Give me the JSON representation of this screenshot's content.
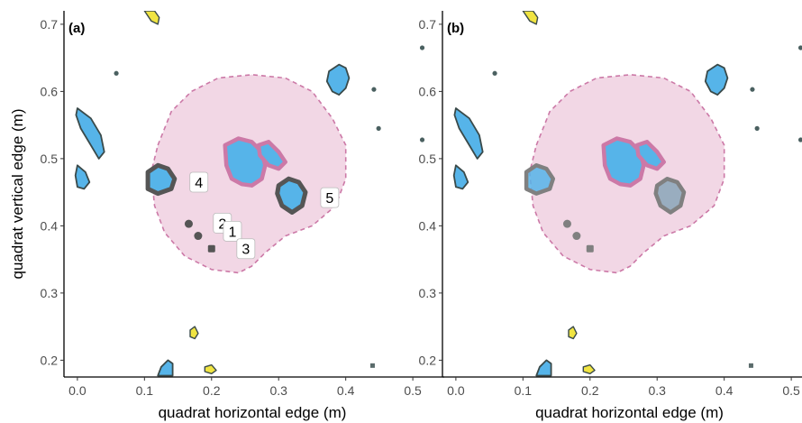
{
  "chart_data": {
    "type": "scatter",
    "xlabel": "quadrat horizontal edge (m)",
    "ylabel": "quadrat vertical edge (m)",
    "x_ticks": [
      "0.0",
      "0.1",
      "0.2",
      "0.3",
      "0.4",
      "0.5"
    ],
    "y_ticks": [
      "0.2",
      "0.3",
      "0.4",
      "0.5",
      "0.6",
      "0.7"
    ],
    "xlim": [
      -0.02,
      0.52
    ],
    "ylim": [
      0.175,
      0.72
    ],
    "grid": false,
    "colors": {
      "plant": "#56B4E9",
      "yellow_plant": "#F0E442",
      "canopy_fill": "#F2D7E5",
      "canopy_edge": "#CC79A7",
      "highlight_dark": "#555555",
      "highlight_grey": "#808080",
      "small_point": "#4a6060"
    },
    "panels": [
      {
        "tag": "(a)",
        "labels": [
          {
            "text": "4",
            "x": 0.165,
            "y": 0.465
          },
          {
            "text": "2",
            "x": 0.2,
            "y": 0.404
          },
          {
            "text": "1",
            "x": 0.215,
            "y": 0.392
          },
          {
            "text": "3",
            "x": 0.235,
            "y": 0.366
          },
          {
            "text": "5",
            "x": 0.36,
            "y": 0.442
          }
        ]
      },
      {
        "tag": "(b)",
        "labels": []
      }
    ],
    "small_points": [
      {
        "x": 0.058,
        "y": 0.627
      },
      {
        "x": 0.442,
        "y": 0.603
      },
      {
        "x": 0.449,
        "y": 0.545
      },
      {
        "x": 0.514,
        "y": 0.665
      },
      {
        "x": 0.514,
        "y": 0.528
      }
    ],
    "tiny_square": {
      "x": 0.44,
      "y": 0.192
    },
    "small_cluster": [
      {
        "x": 0.166,
        "y": 0.403
      },
      {
        "x": 0.18,
        "y": 0.385
      },
      {
        "x": 0.2,
        "y": 0.366
      }
    ],
    "canopy": [
      [
        0.12,
        0.52
      ],
      [
        0.14,
        0.57
      ],
      [
        0.17,
        0.6
      ],
      [
        0.21,
        0.62
      ],
      [
        0.26,
        0.625
      ],
      [
        0.31,
        0.62
      ],
      [
        0.35,
        0.6
      ],
      [
        0.38,
        0.56
      ],
      [
        0.4,
        0.52
      ],
      [
        0.4,
        0.47
      ],
      [
        0.385,
        0.43
      ],
      [
        0.35,
        0.4
      ],
      [
        0.31,
        0.385
      ],
      [
        0.28,
        0.36
      ],
      [
        0.26,
        0.34
      ],
      [
        0.24,
        0.33
      ],
      [
        0.2,
        0.335
      ],
      [
        0.16,
        0.355
      ],
      [
        0.13,
        0.39
      ],
      [
        0.115,
        0.43
      ],
      [
        0.11,
        0.48
      ]
    ],
    "blue_plants": [
      [
        [
          0.0,
          0.575
        ],
        [
          0.02,
          0.56
        ],
        [
          0.035,
          0.535
        ],
        [
          0.04,
          0.51
        ],
        [
          0.032,
          0.5
        ],
        [
          0.02,
          0.52
        ],
        [
          0.005,
          0.545
        ],
        [
          -0.002,
          0.565
        ]
      ],
      [
        [
          0.0,
          0.49
        ],
        [
          0.012,
          0.48
        ],
        [
          0.018,
          0.465
        ],
        [
          0.01,
          0.455
        ],
        [
          0.0,
          0.458
        ],
        [
          -0.003,
          0.475
        ]
      ],
      [
        [
          0.375,
          0.63
        ],
        [
          0.39,
          0.64
        ],
        [
          0.4,
          0.635
        ],
        [
          0.405,
          0.62
        ],
        [
          0.4,
          0.605
        ],
        [
          0.39,
          0.595
        ],
        [
          0.38,
          0.6
        ],
        [
          0.372,
          0.615
        ]
      ],
      [
        [
          0.12,
          0.177
        ],
        [
          0.125,
          0.19
        ],
        [
          0.135,
          0.2
        ],
        [
          0.142,
          0.195
        ],
        [
          0.142,
          0.177
        ]
      ]
    ],
    "yellow_plants": [
      [
        [
          0.1,
          0.72
        ],
        [
          0.11,
          0.705
        ],
        [
          0.12,
          0.7
        ],
        [
          0.122,
          0.71
        ],
        [
          0.115,
          0.72
        ]
      ],
      [
        [
          0.168,
          0.245
        ],
        [
          0.175,
          0.25
        ],
        [
          0.18,
          0.24
        ],
        [
          0.175,
          0.232
        ],
        [
          0.168,
          0.235
        ]
      ],
      [
        [
          0.19,
          0.19
        ],
        [
          0.2,
          0.193
        ],
        [
          0.207,
          0.185
        ],
        [
          0.2,
          0.18
        ],
        [
          0.19,
          0.183
        ]
      ]
    ],
    "highlight_plant_4": [
      [
        0.105,
        0.48
      ],
      [
        0.12,
        0.49
      ],
      [
        0.135,
        0.485
      ],
      [
        0.145,
        0.47
      ],
      [
        0.14,
        0.455
      ],
      [
        0.12,
        0.448
      ],
      [
        0.105,
        0.455
      ]
    ],
    "highlight_plant_5": [
      [
        0.3,
        0.46
      ],
      [
        0.315,
        0.47
      ],
      [
        0.33,
        0.465
      ],
      [
        0.34,
        0.45
      ],
      [
        0.335,
        0.43
      ],
      [
        0.32,
        0.42
      ],
      [
        0.305,
        0.43
      ],
      [
        0.298,
        0.448
      ]
    ],
    "canopy_core_1": [
      [
        0.22,
        0.52
      ],
      [
        0.24,
        0.53
      ],
      [
        0.26,
        0.525
      ],
      [
        0.275,
        0.51
      ],
      [
        0.28,
        0.49
      ],
      [
        0.275,
        0.47
      ],
      [
        0.26,
        0.46
      ],
      [
        0.245,
        0.462
      ],
      [
        0.23,
        0.47
      ],
      [
        0.222,
        0.49
      ]
    ],
    "canopy_core_2": [
      [
        0.27,
        0.52
      ],
      [
        0.285,
        0.525
      ],
      [
        0.3,
        0.51
      ],
      [
        0.31,
        0.495
      ],
      [
        0.3,
        0.485
      ],
      [
        0.285,
        0.49
      ],
      [
        0.272,
        0.505
      ]
    ]
  }
}
